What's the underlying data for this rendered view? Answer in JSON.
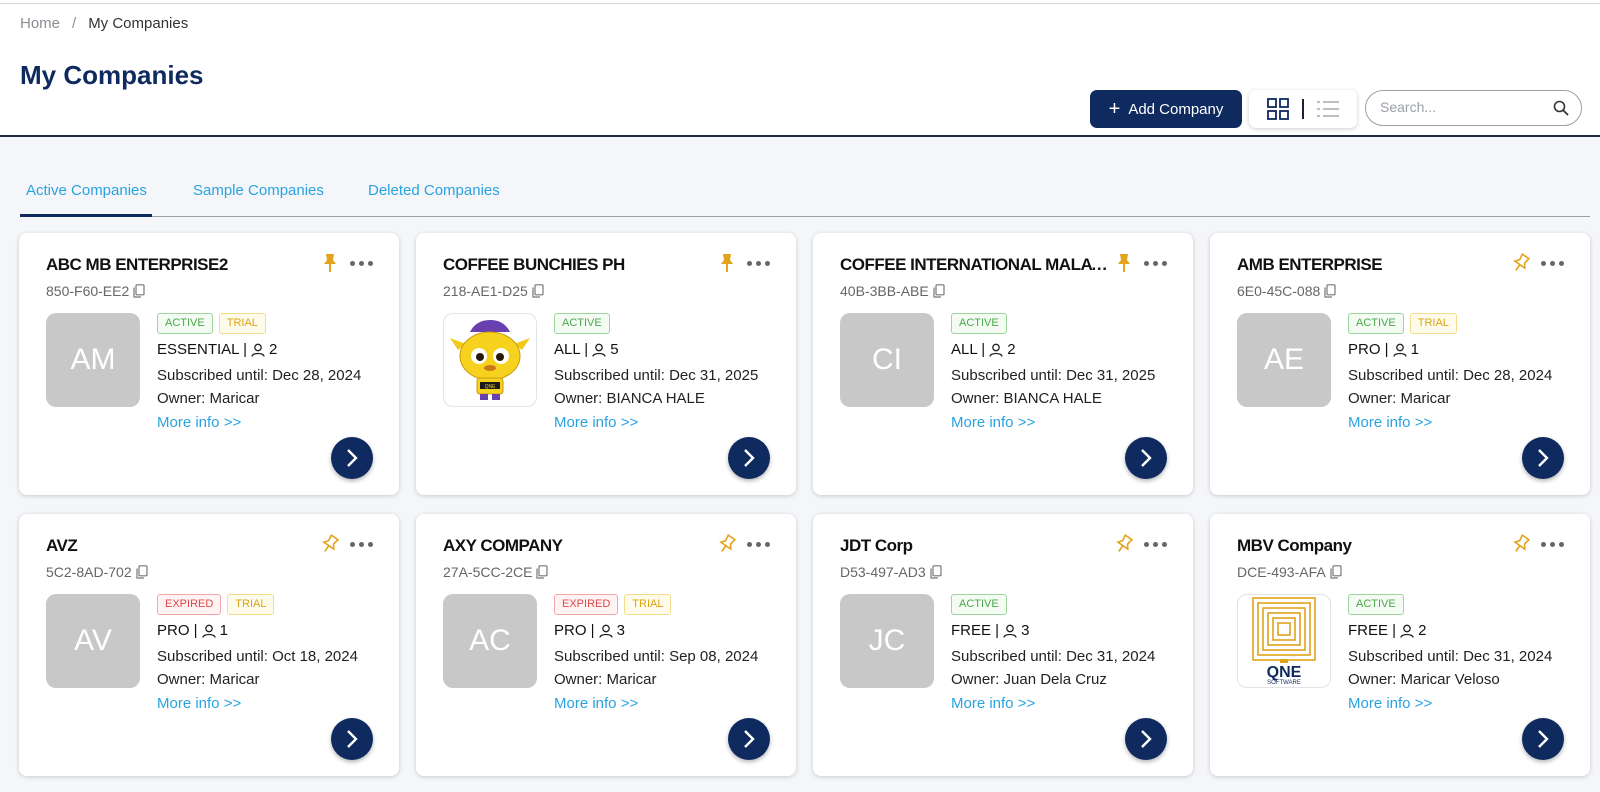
{
  "breadcrumb": {
    "home": "Home",
    "separator": "/",
    "current": "My Companies"
  },
  "page_title": "My Companies",
  "toolbar": {
    "add_label": "Add Company",
    "search_placeholder": "Search..."
  },
  "tabs": [
    {
      "label": "Active Companies",
      "active": true
    },
    {
      "label": "Sample Companies",
      "active": false
    },
    {
      "label": "Deleted Companies",
      "active": false
    }
  ],
  "colors": {
    "primary": "#0f2a5e",
    "link": "#29a3e0",
    "pin": "#e3a31a"
  },
  "companies": [
    {
      "name": "ABC MB ENTERPRISE2",
      "code": "850-F60-EE2",
      "avatar": "AM",
      "logo": "",
      "badges": [
        {
          "label": "ACTIVE",
          "type": "active"
        },
        {
          "label": "TRIAL",
          "type": "trial"
        }
      ],
      "plan": "ESSENTIAL |",
      "users": "2",
      "subscribed": "Subscribed until: Dec 28, 2024",
      "owner": "Owner: Maricar",
      "more_info": "More info >>",
      "pinned": true
    },
    {
      "name": "COFFEE BUNCHIES PH",
      "code": "218-AE1-D25",
      "avatar": "",
      "logo": "mascot",
      "badges": [
        {
          "label": "ACTIVE",
          "type": "active"
        }
      ],
      "plan": "ALL |",
      "users": "5",
      "subscribed": "Subscribed until: Dec 31, 2025",
      "owner": "Owner: BIANCA HALE",
      "more_info": "More info >>",
      "pinned": true
    },
    {
      "name": "COFFEE INTERNATIONAL MALAY...",
      "code": "40B-3BB-ABE",
      "avatar": "CI",
      "logo": "",
      "badges": [
        {
          "label": "ACTIVE",
          "type": "active"
        }
      ],
      "plan": "ALL |",
      "users": "2",
      "subscribed": "Subscribed until: Dec 31, 2025",
      "owner": "Owner: BIANCA HALE",
      "more_info": "More info >>",
      "pinned": true
    },
    {
      "name": "AMB ENTERPRISE",
      "code": "6E0-45C-088",
      "avatar": "AE",
      "logo": "",
      "badges": [
        {
          "label": "ACTIVE",
          "type": "active"
        },
        {
          "label": "TRIAL",
          "type": "trial"
        }
      ],
      "plan": "PRO |",
      "users": "1",
      "subscribed": "Subscribed until: Dec 28, 2024",
      "owner": "Owner: Maricar",
      "more_info": "More info >>",
      "pinned": false
    },
    {
      "name": "AVZ",
      "code": "5C2-8AD-702",
      "avatar": "AV",
      "logo": "",
      "badges": [
        {
          "label": "EXPIRED",
          "type": "expired"
        },
        {
          "label": "TRIAL",
          "type": "trial"
        }
      ],
      "plan": "PRO |",
      "users": "1",
      "subscribed": "Subscribed until: Oct 18, 2024",
      "owner": "Owner: Maricar",
      "more_info": "More info >>",
      "pinned": false
    },
    {
      "name": "AXY COMPANY",
      "code": "27A-5CC-2CE",
      "avatar": "AC",
      "logo": "",
      "badges": [
        {
          "label": "EXPIRED",
          "type": "expired"
        },
        {
          "label": "TRIAL",
          "type": "trial"
        }
      ],
      "plan": "PRO |",
      "users": "3",
      "subscribed": "Subscribed until: Sep 08, 2024",
      "owner": "Owner: Maricar",
      "more_info": "More info >>",
      "pinned": false
    },
    {
      "name": "JDT Corp",
      "code": "D53-497-AD3",
      "avatar": "JC",
      "logo": "",
      "badges": [
        {
          "label": "ACTIVE",
          "type": "active"
        }
      ],
      "plan": "FREE |",
      "users": "3",
      "subscribed": "Subscribed until: Dec 31, 2024",
      "owner": "Owner: Juan Dela Cruz",
      "more_info": "More info >>",
      "pinned": false
    },
    {
      "name": "MBV Company",
      "code": "DCE-493-AFA",
      "avatar": "",
      "logo": "qne",
      "badges": [
        {
          "label": "ACTIVE",
          "type": "active"
        }
      ],
      "plan": "FREE |",
      "users": "2",
      "subscribed": "Subscribed until: Dec 31, 2024",
      "owner": "Owner: Maricar Veloso",
      "more_info": "More info >>",
      "pinned": false
    }
  ],
  "logos": {
    "qne_text": "QNE",
    "qne_sub": "SOFTWARE",
    "mascot_badge": "QNE"
  }
}
